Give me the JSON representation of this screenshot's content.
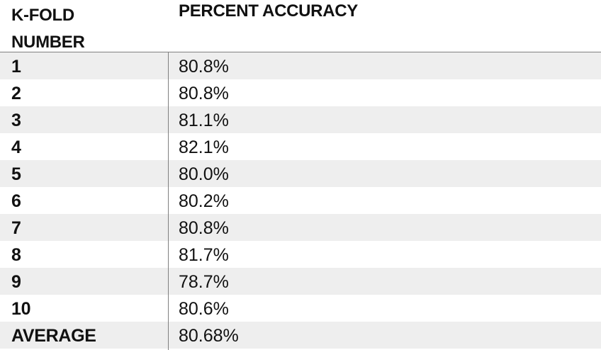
{
  "table": {
    "headers": {
      "fold_line1": "K-FOLD",
      "fold_line2": "NUMBER",
      "accuracy": "PERCENT ACCURACY"
    },
    "rows": [
      {
        "fold": "1",
        "accuracy": "80.8%"
      },
      {
        "fold": "2",
        "accuracy": "80.8%"
      },
      {
        "fold": "3",
        "accuracy": "81.1%"
      },
      {
        "fold": "4",
        "accuracy": "82.1%"
      },
      {
        "fold": "5",
        "accuracy": "80.0%"
      },
      {
        "fold": "6",
        "accuracy": "80.2%"
      },
      {
        "fold": "7",
        "accuracy": "80.8%"
      },
      {
        "fold": "8",
        "accuracy": "81.7%"
      },
      {
        "fold": "9",
        "accuracy": "78.7%"
      },
      {
        "fold": "10",
        "accuracy": "80.6%"
      },
      {
        "fold": "AVERAGE",
        "accuracy": "80.68%"
      }
    ],
    "colors": {
      "shaded_row": "#eeeeee",
      "rule": "#808080",
      "text": "#111111"
    }
  }
}
